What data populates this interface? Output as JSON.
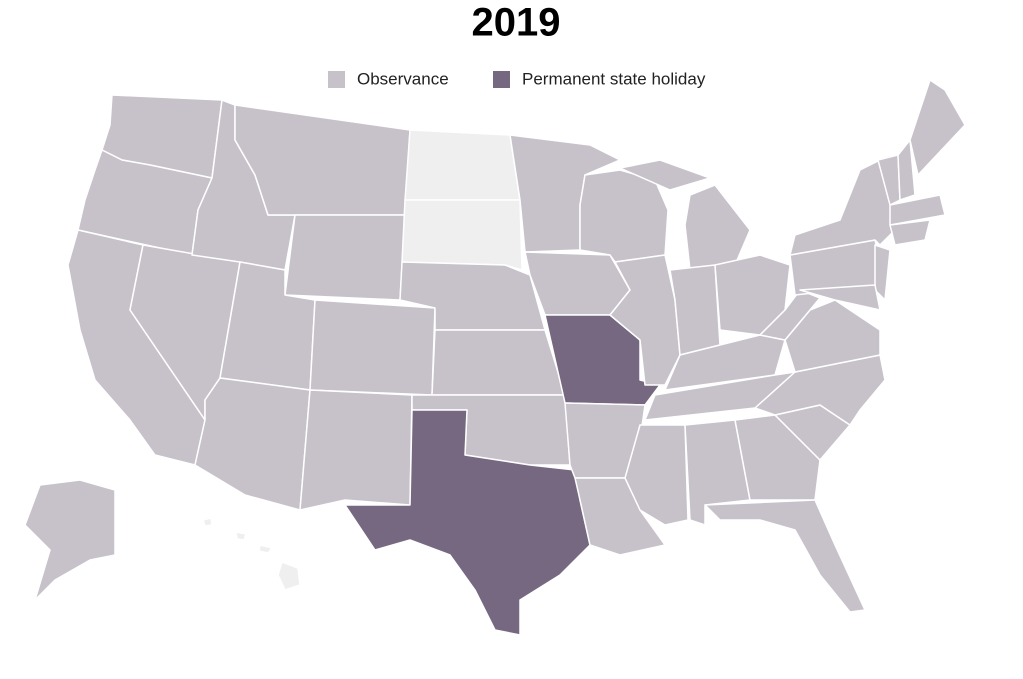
{
  "title": "2019",
  "legend": [
    {
      "label": "Observance",
      "color": "#c7c1ca"
    },
    {
      "label": "Permanent state holiday",
      "color": "#756880"
    }
  ]
}
